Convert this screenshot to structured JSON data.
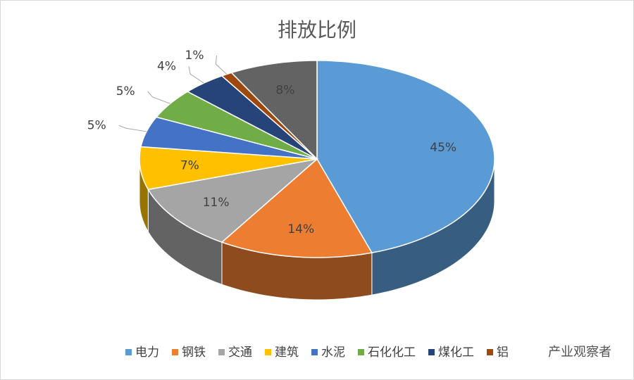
{
  "chart_data": {
    "type": "pie3d",
    "title": "排放比例",
    "categories": [
      "电力",
      "钢铁",
      "交通",
      "建筑",
      "水泥",
      "石化化工",
      "煤化工",
      "铝",
      null
    ],
    "values": [
      45,
      14,
      11,
      7,
      5,
      5,
      4,
      1,
      8
    ],
    "value_labels": [
      "45%",
      "14%",
      "11%",
      "7%",
      "5%",
      "5%",
      "4%",
      "1%",
      "8%"
    ],
    "colors": [
      "#5b9bd5",
      "#ed7d31",
      "#a5a5a5",
      "#ffc000",
      "#4472c4",
      "#70ad47",
      "#264478",
      "#9e480e",
      "#636363"
    ],
    "legend": "bottom",
    "watermark": "产业观察者"
  }
}
